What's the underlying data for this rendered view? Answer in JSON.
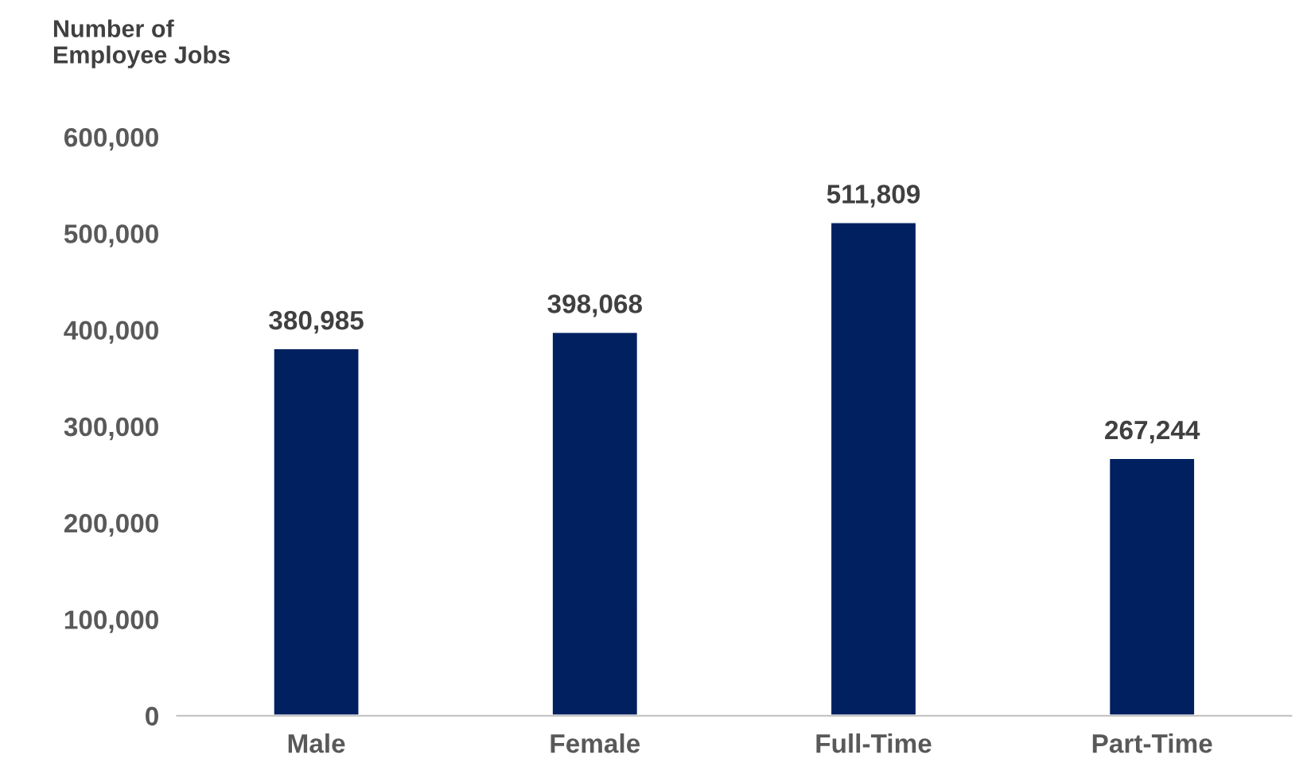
{
  "chart_data": {
    "type": "bar",
    "ylabel": "Number of\nEmployee Jobs",
    "categories": [
      "Male",
      "Female",
      "Full-Time",
      "Part-Time"
    ],
    "values": [
      380985,
      398068,
      511809,
      267244
    ],
    "value_labels": [
      "380,985",
      "398,068",
      "511,809",
      "267,244"
    ],
    "color": "#002060",
    "ylim": [
      0,
      600000
    ],
    "yticks": [
      0,
      {
        "value": 100000,
        "label": "100,000"
      },
      {
        "value": 200000,
        "label": "200,000"
      },
      {
        "value": 300000,
        "label": "300,000"
      },
      {
        "value": 400000,
        "label": "400,000"
      },
      {
        "value": 500000,
        "label": "500,000"
      },
      {
        "value": 600000,
        "label": "600,000"
      }
    ],
    "grid": false
  }
}
